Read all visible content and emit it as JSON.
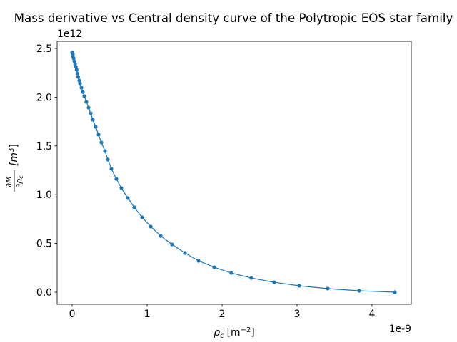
{
  "chart_data": {
    "type": "line",
    "title": "Mass derivative vs Central density curve of the Polytropic EOS star family",
    "xlabel": {
      "symbol": "ρ",
      "subscript": "c",
      "unit": "[m",
      "exponent": "−2",
      "close": "]"
    },
    "ylabel": {
      "numerator": "∂M",
      "denominator": "∂ρ",
      "denominator_sub": "c",
      "unit": "[m",
      "exponent": "3",
      "close": "]"
    },
    "x_offset_label": "1e-9",
    "y_offset_label": "1e12",
    "x": [
      0.0,
      0.01,
      0.01,
      0.02,
      0.03,
      0.04,
      0.05,
      0.06,
      0.07,
      0.08,
      0.095,
      0.105,
      0.124,
      0.143,
      0.162,
      0.19,
      0.219,
      0.248,
      0.276,
      0.314,
      0.352,
      0.39,
      0.438,
      0.476,
      0.524,
      0.59,
      0.657,
      0.743,
      0.829,
      0.933,
      1.048,
      1.181,
      1.333,
      1.505,
      1.686,
      1.895,
      2.124,
      2.39,
      2.695,
      3.029,
      3.41,
      3.829,
      4.305
    ],
    "series": [
      {
        "color": "#1f77b4",
        "values": [
          2.456,
          2.442,
          2.42,
          2.398,
          2.368,
          2.339,
          2.31,
          2.281,
          2.244,
          2.208,
          2.171,
          2.142,
          2.098,
          2.054,
          2.01,
          1.952,
          1.893,
          1.835,
          1.769,
          1.696,
          1.615,
          1.535,
          1.447,
          1.36,
          1.265,
          1.162,
          1.067,
          0.965,
          0.87,
          0.768,
          0.673,
          0.577,
          0.49,
          0.402,
          0.322,
          0.256,
          0.197,
          0.146,
          0.102,
          0.066,
          0.037,
          0.015,
          0.0
        ]
      }
    ],
    "xlim": [
      -0.2,
      4.524
    ],
    "ylim": [
      -0.124,
      2.573
    ],
    "xticks": [
      0,
      1,
      2,
      3,
      4
    ],
    "yticks": [
      {
        "value": 0,
        "label": "0.0"
      },
      0.5,
      {
        "value": 1,
        "label": "1.0"
      },
      1.5,
      {
        "value": 2,
        "label": "2.0"
      },
      2.5
    ],
    "grid": false
  }
}
